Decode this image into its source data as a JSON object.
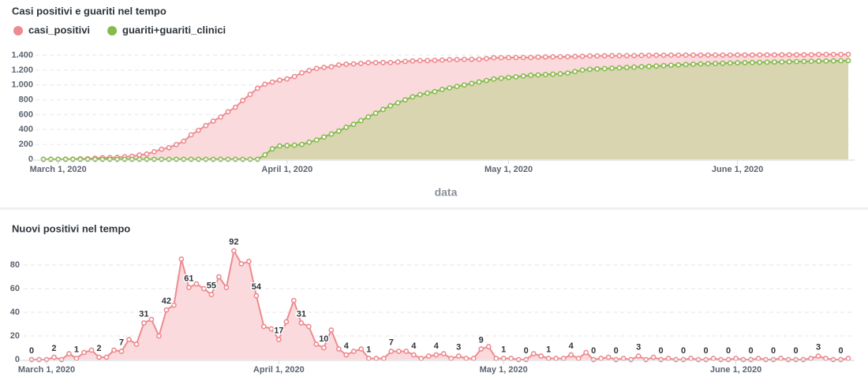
{
  "chart_data": [
    {
      "type": "area",
      "title": "Casi positivi e guariti nel tempo",
      "x_label": "data",
      "legend": "top-left",
      "grid": true,
      "x": [
        "2020-02-28",
        "2020-02-29",
        "2020-03-01",
        "2020-03-02",
        "2020-03-03",
        "2020-03-04",
        "2020-03-05",
        "2020-03-06",
        "2020-03-07",
        "2020-03-08",
        "2020-03-09",
        "2020-03-10",
        "2020-03-11",
        "2020-03-12",
        "2020-03-13",
        "2020-03-14",
        "2020-03-15",
        "2020-03-16",
        "2020-03-17",
        "2020-03-18",
        "2020-03-19",
        "2020-03-20",
        "2020-03-21",
        "2020-03-22",
        "2020-03-23",
        "2020-03-24",
        "2020-03-25",
        "2020-03-26",
        "2020-03-27",
        "2020-03-28",
        "2020-03-29",
        "2020-03-30",
        "2020-03-31",
        "2020-04-01",
        "2020-04-02",
        "2020-04-03",
        "2020-04-04",
        "2020-04-05",
        "2020-04-06",
        "2020-04-07",
        "2020-04-08",
        "2020-04-09",
        "2020-04-10",
        "2020-04-11",
        "2020-04-12",
        "2020-04-13",
        "2020-04-14",
        "2020-04-15",
        "2020-04-16",
        "2020-04-17",
        "2020-04-18",
        "2020-04-19",
        "2020-04-20",
        "2020-04-21",
        "2020-04-22",
        "2020-04-23",
        "2020-04-24",
        "2020-04-25",
        "2020-04-26",
        "2020-04-27",
        "2020-04-28",
        "2020-04-29",
        "2020-04-30",
        "2020-05-01",
        "2020-05-02",
        "2020-05-03",
        "2020-05-04",
        "2020-05-05",
        "2020-05-06",
        "2020-05-07",
        "2020-05-08",
        "2020-05-09",
        "2020-05-10",
        "2020-05-11",
        "2020-05-12",
        "2020-05-13",
        "2020-05-14",
        "2020-05-15",
        "2020-05-16",
        "2020-05-17",
        "2020-05-18",
        "2020-05-19",
        "2020-05-20",
        "2020-05-21",
        "2020-05-22",
        "2020-05-23",
        "2020-05-24",
        "2020-05-25",
        "2020-05-26",
        "2020-05-27",
        "2020-05-28",
        "2020-05-29",
        "2020-05-30",
        "2020-05-31",
        "2020-06-01",
        "2020-06-02",
        "2020-06-03",
        "2020-06-04",
        "2020-06-05",
        "2020-06-06",
        "2020-06-07",
        "2020-06-08",
        "2020-06-09",
        "2020-06-10",
        "2020-06-11",
        "2020-06-12",
        "2020-06-13",
        "2020-06-14",
        "2020-06-15",
        "2020-06-16"
      ],
      "xlim": [
        "2020-02-28",
        "2020-06-16"
      ],
      "xticks": [
        {
          "value": "2020-03-01",
          "label": "March 1, 2020"
        },
        {
          "value": "2020-04-01",
          "label": "April 1, 2020"
        },
        {
          "value": "2020-05-01",
          "label": "May 1, 2020"
        },
        {
          "value": "2020-06-01",
          "label": "June 1, 2020"
        }
      ],
      "ylim": [
        0,
        1400
      ],
      "yticks": [
        0,
        200,
        400,
        600,
        800,
        {
          "value": 1000,
          "label": "1.000"
        },
        {
          "value": 1200,
          "label": "1.200"
        },
        {
          "value": 1400,
          "label": "1.400"
        }
      ],
      "series": [
        {
          "name": "casi_positivi",
          "color": "#ed8b90",
          "fill": "#fadadc",
          "values": [
            0,
            0,
            0,
            2,
            2,
            7,
            8,
            14,
            22,
            24,
            26,
            34,
            41,
            58,
            71,
            102,
            136,
            156,
            198,
            244,
            329,
            390,
            454,
            514,
            569,
            639,
            700,
            792,
            873,
            956,
            1010,
            1038,
            1064,
            1081,
            1113,
            1163,
            1194,
            1222,
            1235,
            1245,
            1270,
            1279,
            1283,
            1290,
            1299,
            1300,
            1301,
            1302,
            1309,
            1316,
            1323,
            1327,
            1328,
            1331,
            1335,
            1340,
            1341,
            1344,
            1345,
            1346,
            1355,
            1366,
            1367,
            1368,
            1369,
            1369,
            1369,
            1374,
            1377,
            1378,
            1379,
            1380,
            1384,
            1385,
            1391,
            1391,
            1392,
            1394,
            1394,
            1395,
            1395,
            1398,
            1398,
            1400,
            1400,
            1401,
            1401,
            1401,
            1402,
            1402,
            1402,
            1403,
            1403,
            1403,
            1404,
            1404,
            1404,
            1405,
            1405,
            1405,
            1406,
            1406,
            1406,
            1406,
            1407,
            1410,
            1411,
            1411,
            1411,
            1412
          ]
        },
        {
          "name": "guariti+guariti_clinici",
          "color": "#84bb4c",
          "fill": "#d8d5b0",
          "values": [
            0,
            0,
            0,
            0,
            0,
            0,
            0,
            0,
            0,
            0,
            0,
            0,
            0,
            0,
            0,
            0,
            0,
            0,
            0,
            0,
            0,
            0,
            0,
            0,
            0,
            0,
            0,
            0,
            0,
            0,
            60,
            140,
            180,
            185,
            190,
            200,
            230,
            260,
            300,
            340,
            380,
            430,
            470,
            520,
            570,
            620,
            670,
            720,
            760,
            800,
            840,
            870,
            890,
            910,
            940,
            960,
            980,
            1000,
            1020,
            1040,
            1060,
            1080,
            1090,
            1100,
            1110,
            1120,
            1130,
            1135,
            1140,
            1145,
            1150,
            1160,
            1180,
            1200,
            1210,
            1215,
            1220,
            1225,
            1230,
            1235,
            1240,
            1245,
            1250,
            1255,
            1260,
            1265,
            1270,
            1275,
            1280,
            1283,
            1286,
            1289,
            1292,
            1295,
            1298,
            1300,
            1302,
            1304,
            1306,
            1308,
            1310,
            1312,
            1314,
            1316,
            1318,
            1320,
            1322,
            1324,
            1326,
            1328
          ]
        }
      ]
    },
    {
      "type": "area",
      "title": "Nuovi positivi nel tempo",
      "grid": true,
      "data_labels": true,
      "color": "#ed8b90",
      "fill": "#fadadc",
      "x": [
        "2020-02-28",
        "2020-02-29",
        "2020-03-01",
        "2020-03-02",
        "2020-03-03",
        "2020-03-04",
        "2020-03-05",
        "2020-03-06",
        "2020-03-07",
        "2020-03-08",
        "2020-03-09",
        "2020-03-10",
        "2020-03-11",
        "2020-03-12",
        "2020-03-13",
        "2020-03-14",
        "2020-03-15",
        "2020-03-16",
        "2020-03-17",
        "2020-03-18",
        "2020-03-19",
        "2020-03-20",
        "2020-03-21",
        "2020-03-22",
        "2020-03-23",
        "2020-03-24",
        "2020-03-25",
        "2020-03-26",
        "2020-03-27",
        "2020-03-28",
        "2020-03-29",
        "2020-03-30",
        "2020-03-31",
        "2020-04-01",
        "2020-04-02",
        "2020-04-03",
        "2020-04-04",
        "2020-04-05",
        "2020-04-06",
        "2020-04-07",
        "2020-04-08",
        "2020-04-09",
        "2020-04-10",
        "2020-04-11",
        "2020-04-12",
        "2020-04-13",
        "2020-04-14",
        "2020-04-15",
        "2020-04-16",
        "2020-04-17",
        "2020-04-18",
        "2020-04-19",
        "2020-04-20",
        "2020-04-21",
        "2020-04-22",
        "2020-04-23",
        "2020-04-24",
        "2020-04-25",
        "2020-04-26",
        "2020-04-27",
        "2020-04-28",
        "2020-04-29",
        "2020-04-30",
        "2020-05-01",
        "2020-05-02",
        "2020-05-03",
        "2020-05-04",
        "2020-05-05",
        "2020-05-06",
        "2020-05-07",
        "2020-05-08",
        "2020-05-09",
        "2020-05-10",
        "2020-05-11",
        "2020-05-12",
        "2020-05-13",
        "2020-05-14",
        "2020-05-15",
        "2020-05-16",
        "2020-05-17",
        "2020-05-18",
        "2020-05-19",
        "2020-05-20",
        "2020-05-21",
        "2020-05-22",
        "2020-05-23",
        "2020-05-24",
        "2020-05-25",
        "2020-05-26",
        "2020-05-27",
        "2020-05-28",
        "2020-05-29",
        "2020-05-30",
        "2020-05-31",
        "2020-06-01",
        "2020-06-02",
        "2020-06-03",
        "2020-06-04",
        "2020-06-05",
        "2020-06-06",
        "2020-06-07",
        "2020-06-08",
        "2020-06-09",
        "2020-06-10",
        "2020-06-11",
        "2020-06-12",
        "2020-06-13",
        "2020-06-14",
        "2020-06-15",
        "2020-06-16"
      ],
      "xlim": [
        "2020-02-28",
        "2020-06-16"
      ],
      "xticks": [
        {
          "value": "2020-03-01",
          "label": "March 1, 2020"
        },
        {
          "value": "2020-04-01",
          "label": "April 1, 2020"
        },
        {
          "value": "2020-05-01",
          "label": "May 1, 2020"
        },
        {
          "value": "2020-06-01",
          "label": "June 1, 2020"
        }
      ],
      "ylim": [
        0,
        95
      ],
      "yticks": [
        0,
        20,
        40,
        60,
        80
      ],
      "values": [
        0,
        0,
        0,
        2,
        0,
        5,
        1,
        6,
        8,
        2,
        2,
        8,
        7,
        17,
        13,
        31,
        34,
        20,
        42,
        46,
        85,
        61,
        64,
        60,
        55,
        70,
        61,
        92,
        81,
        83,
        54,
        28,
        26,
        17,
        32,
        50,
        31,
        28,
        13,
        10,
        25,
        9,
        4,
        7,
        9,
        1,
        1,
        1,
        7,
        7,
        7,
        4,
        1,
        3,
        4,
        5,
        1,
        3,
        1,
        1,
        9,
        11,
        1,
        1,
        1,
        0,
        0,
        5,
        3,
        1,
        1,
        1,
        4,
        1,
        6,
        0,
        1,
        2,
        0,
        1,
        0,
        3,
        0,
        2,
        0,
        1,
        0,
        0,
        1,
        0,
        0,
        1,
        0,
        0,
        1,
        0,
        0,
        1,
        0,
        0,
        1,
        0,
        0,
        0,
        1,
        3,
        1,
        0,
        0,
        1
      ]
    }
  ]
}
